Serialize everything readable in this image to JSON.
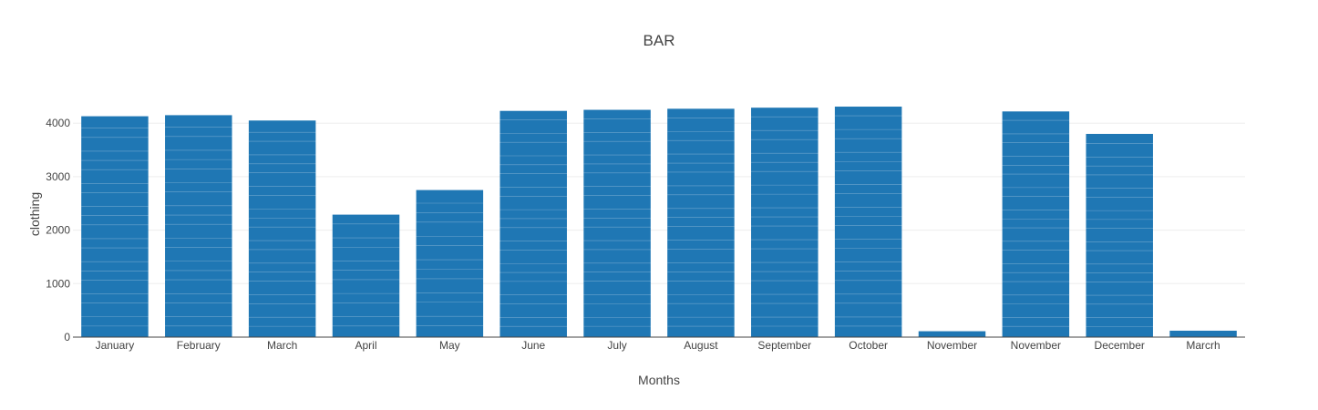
{
  "chart_data": {
    "type": "bar",
    "title": "BAR",
    "xlabel": "Months",
    "ylabel": "clothing",
    "categories": [
      "January",
      "February",
      "March",
      "April",
      "May",
      "June",
      "July",
      "August",
      "September",
      "October",
      "November",
      "November",
      "December",
      "Marcrh"
    ],
    "values": [
      4130,
      4150,
      4050,
      2290,
      2750,
      4230,
      4250,
      4270,
      4290,
      4310,
      110,
      4220,
      3800,
      120
    ],
    "ylim": [
      0,
      4600
    ],
    "yticks": [
      0,
      1000,
      2000,
      3000,
      4000
    ],
    "grid": true,
    "legend": "none",
    "bar_color": "#1f77b4"
  }
}
